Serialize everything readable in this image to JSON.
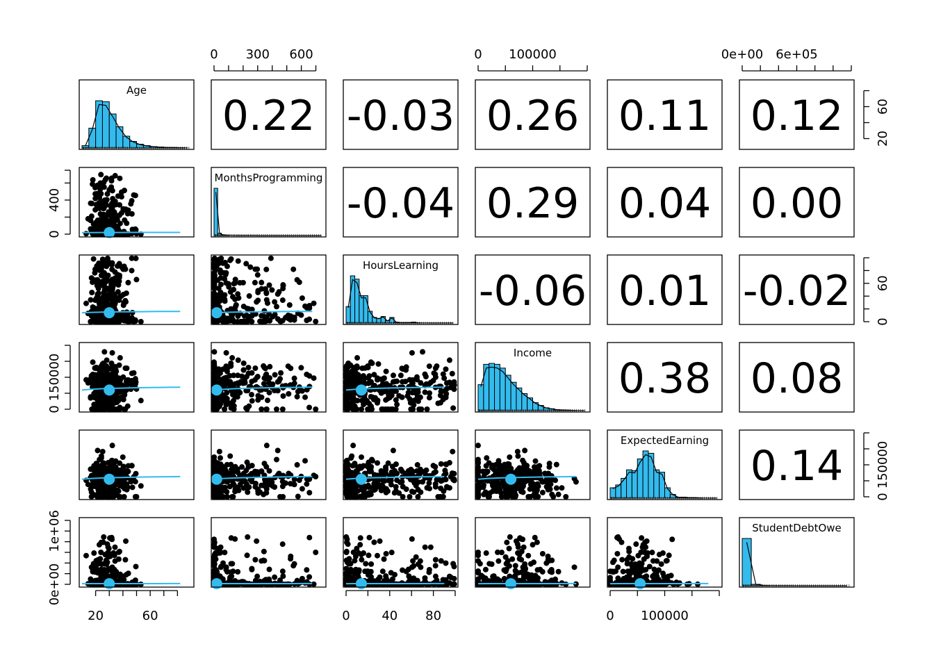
{
  "chart_data": {
    "type": "scatter",
    "variables": [
      "Age",
      "MonthsProgramming",
      "HoursLearning",
      "Income",
      "ExpectedEarning",
      "StudentDebtOwe"
    ],
    "correlations": [
      {
        "row": 0,
        "col": 1,
        "value": "0.22"
      },
      {
        "row": 0,
        "col": 2,
        "value": "-0.03"
      },
      {
        "row": 0,
        "col": 3,
        "value": "0.26"
      },
      {
        "row": 0,
        "col": 4,
        "value": "0.11"
      },
      {
        "row": 0,
        "col": 5,
        "value": "0.12"
      },
      {
        "row": 1,
        "col": 2,
        "value": "-0.04"
      },
      {
        "row": 1,
        "col": 3,
        "value": "0.29"
      },
      {
        "row": 1,
        "col": 4,
        "value": "0.04"
      },
      {
        "row": 1,
        "col": 5,
        "value": "0.00"
      },
      {
        "row": 2,
        "col": 3,
        "value": "-0.06"
      },
      {
        "row": 2,
        "col": 4,
        "value": "0.01"
      },
      {
        "row": 2,
        "col": 5,
        "value": "-0.02"
      },
      {
        "row": 3,
        "col": 4,
        "value": "0.38"
      },
      {
        "row": 3,
        "col": 5,
        "value": "0.08"
      },
      {
        "row": 4,
        "col": 5,
        "value": "0.14"
      }
    ],
    "ranges": [
      [
        10,
        90
      ],
      [
        0,
        750
      ],
      [
        0,
        100
      ],
      [
        0,
        200000
      ],
      [
        0,
        200000
      ],
      [
        0,
        1200000
      ]
    ],
    "axis_ticks": [
      {
        "side": "bottom",
        "col": 0,
        "ticks": [
          20,
          30,
          40,
          50,
          60,
          70,
          80
        ],
        "labels": [
          "20",
          "",
          "",
          "",
          "60",
          "",
          ""
        ]
      },
      {
        "side": "bottom",
        "col": 2,
        "ticks": [
          0,
          20,
          40,
          60,
          80,
          100
        ],
        "labels": [
          "0",
          "",
          "40",
          "",
          "80",
          ""
        ]
      },
      {
        "side": "bottom",
        "col": 4,
        "ticks": [
          0,
          50000,
          100000,
          150000,
          200000
        ],
        "labels": [
          "0",
          "",
          "100000",
          "",
          ""
        ]
      },
      {
        "side": "top",
        "col": 1,
        "ticks": [
          0,
          100,
          200,
          300,
          400,
          500,
          600,
          700
        ],
        "labels": [
          "0",
          "",
          "",
          "300",
          "",
          "",
          "600",
          ""
        ]
      },
      {
        "side": "top",
        "col": 3,
        "ticks": [
          0,
          50000,
          100000,
          150000,
          200000
        ],
        "labels": [
          "0",
          "",
          "100000",
          "",
          ""
        ]
      },
      {
        "side": "top",
        "col": 5,
        "ticks": [
          0,
          200000,
          400000,
          600000,
          800000,
          1000000,
          1200000
        ],
        "labels": [
          "0e+00",
          "",
          "",
          "6e+05",
          "",
          "",
          ""
        ]
      },
      {
        "side": "left",
        "row": 1,
        "ticks": [
          0,
          200,
          400,
          600,
          750
        ],
        "labels": [
          "0",
          "",
          "400",
          "",
          ""
        ]
      },
      {
        "side": "left",
        "row": 3,
        "ticks": [
          0,
          50000,
          100000,
          150000,
          200000
        ],
        "labels": [
          "0",
          "",
          "150000",
          "",
          ""
        ]
      },
      {
        "side": "left",
        "row": 5,
        "ticks": [
          0,
          200000,
          400000,
          600000,
          800000,
          1000000,
          1200000
        ],
        "labels": [
          "0e+00",
          "",
          "",
          "",
          "",
          "1e+06",
          ""
        ]
      },
      {
        "side": "right",
        "row": 0,
        "ticks": [
          20,
          40,
          60,
          80
        ],
        "labels": [
          "20",
          "",
          "60",
          ""
        ]
      },
      {
        "side": "right",
        "row": 2,
        "ticks": [
          0,
          20,
          40,
          60,
          80,
          100
        ],
        "labels": [
          "0",
          "",
          "",
          "60",
          "",
          ""
        ]
      },
      {
        "side": "right",
        "row": 4,
        "ticks": [
          0,
          50000,
          100000,
          150000,
          200000
        ],
        "labels": [
          "0",
          "",
          "150000",
          "",
          ""
        ]
      }
    ],
    "histograms": [
      {
        "var": "Age",
        "bins": [
          10,
          15,
          20,
          25,
          30,
          35,
          40,
          45,
          50,
          55,
          60,
          65,
          70,
          75,
          80,
          85,
          90
        ],
        "density": [
          0.05,
          0.42,
          1.0,
          0.98,
          0.72,
          0.45,
          0.25,
          0.14,
          0.08,
          0.05,
          0.03,
          0.02,
          0.01,
          0.01,
          0.005,
          0.003
        ]
      },
      {
        "var": "MonthsProgramming",
        "bins": [
          0,
          25,
          50,
          75,
          100,
          125,
          150,
          175,
          200,
          225,
          250,
          275,
          300,
          325,
          350,
          375,
          400,
          425,
          450,
          475,
          500,
          525,
          550,
          575,
          600,
          625,
          650,
          675,
          700,
          725,
          750
        ],
        "density": [
          1.0,
          0.05,
          0.015,
          0.008,
          0.004,
          0.003,
          0.002,
          0.002,
          0.001,
          0.001,
          0.001,
          0.001,
          0.0,
          0.0,
          0.0,
          0.0,
          0.0,
          0.0,
          0.0,
          0.0,
          0.0,
          0.0,
          0.0,
          0.0,
          0.0,
          0.0,
          0.0,
          0.0,
          0.0,
          0.0
        ]
      },
      {
        "var": "HoursLearning",
        "bins": [
          0,
          4,
          8,
          12,
          16,
          20,
          24,
          28,
          32,
          36,
          40,
          44,
          48,
          52,
          56,
          60,
          64,
          68,
          72,
          76,
          80,
          84,
          88,
          92,
          96,
          100
        ],
        "density": [
          0.35,
          1.0,
          0.93,
          0.58,
          0.58,
          0.25,
          0.12,
          0.1,
          0.14,
          0.05,
          0.12,
          0.02,
          0.01,
          0.01,
          0.01,
          0.02,
          0.005,
          0.003,
          0.003,
          0.002,
          0.003,
          0.001,
          0.001,
          0.001,
          0.001
        ]
      },
      {
        "var": "Income",
        "bins": [
          0,
          10000,
          20000,
          30000,
          40000,
          50000,
          60000,
          70000,
          80000,
          90000,
          100000,
          110000,
          120000,
          130000,
          140000,
          150000,
          160000,
          170000,
          180000,
          190000,
          200000
        ],
        "density": [
          0.55,
          0.98,
          1.0,
          0.98,
          0.9,
          0.75,
          0.6,
          0.48,
          0.36,
          0.27,
          0.17,
          0.11,
          0.06,
          0.04,
          0.02,
          0.015,
          0.01,
          0.005,
          0.003,
          0.002
        ]
      },
      {
        "var": "ExpectedEarning",
        "bins": [
          0,
          10000,
          20000,
          30000,
          40000,
          50000,
          60000,
          70000,
          80000,
          90000,
          100000,
          110000,
          120000,
          130000,
          140000,
          150000,
          160000,
          170000,
          180000,
          190000,
          200000
        ],
        "density": [
          0.22,
          0.28,
          0.42,
          0.6,
          0.58,
          0.83,
          1.0,
          0.95,
          0.6,
          0.55,
          0.22,
          0.08,
          0.02,
          0.02,
          0.01,
          0.01,
          0.005,
          0.003,
          0.002,
          0.002
        ]
      },
      {
        "var": "StudentDebtOwe",
        "bins": [
          0,
          100000,
          200000,
          300000,
          400000,
          500000,
          600000,
          700000,
          800000,
          900000,
          1000000,
          1100000,
          1200000
        ],
        "density": [
          1.0,
          0.03,
          0.005,
          0.002,
          0.001,
          0.001,
          0.0,
          0.0,
          0.0,
          0.0,
          0.0,
          0.0
        ]
      }
    ],
    "means": [
      30,
      18,
      14,
      60000,
      55000,
      12000
    ],
    "point_color": "#000000",
    "fit_color": "#33bbee",
    "hist_fill": "#33bbee"
  }
}
